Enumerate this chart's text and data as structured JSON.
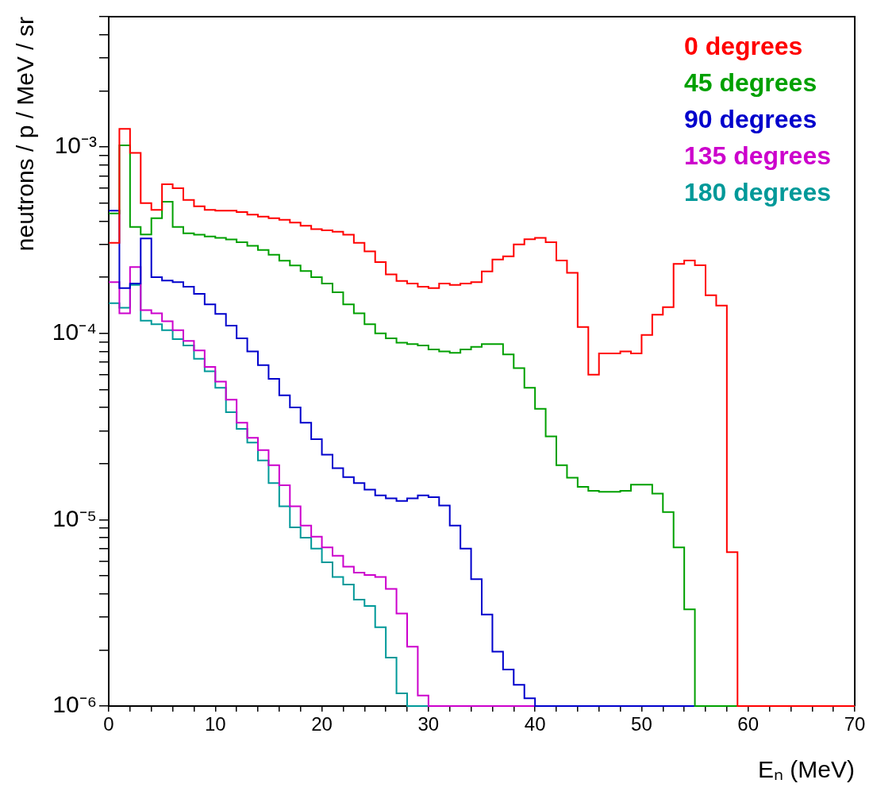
{
  "chart_data": {
    "type": "histogram",
    "xlabel": "Eₙ (MeV)",
    "ylabel": "neutrons / p / MeV / sr",
    "log": true,
    "legend": "top right",
    "xlim": [
      0,
      70
    ],
    "ylim": [
      1e-06,
      0.005
    ],
    "xticks": [
      0,
      {
        "value": 2,
        "label": null
      },
      {
        "value": 4,
        "label": null
      },
      {
        "value": 6,
        "label": null
      },
      {
        "value": 8,
        "label": null
      },
      10,
      {
        "value": 12,
        "label": null
      },
      {
        "value": 14,
        "label": null
      },
      {
        "value": 16,
        "label": null
      },
      {
        "value": 18,
        "label": null
      },
      20,
      {
        "value": 22,
        "label": null
      },
      {
        "value": 24,
        "label": null
      },
      {
        "value": 26,
        "label": null
      },
      {
        "value": 28,
        "label": null
      },
      30,
      {
        "value": 32,
        "label": null
      },
      {
        "value": 34,
        "label": null
      },
      {
        "value": 36,
        "label": null
      },
      {
        "value": 38,
        "label": null
      },
      40,
      {
        "value": 42,
        "label": null
      },
      {
        "value": 44,
        "label": null
      },
      {
        "value": 46,
        "label": null
      },
      {
        "value": 48,
        "label": null
      },
      50,
      {
        "value": 52,
        "label": null
      },
      {
        "value": 54,
        "label": null
      },
      {
        "value": 56,
        "label": null
      },
      {
        "value": 58,
        "label": null
      },
      60,
      {
        "value": 62,
        "label": null
      },
      {
        "value": 64,
        "label": null
      },
      {
        "value": 66,
        "label": null
      },
      {
        "value": 68,
        "label": null
      },
      70
    ],
    "yticks": [
      {
        "value": 1e-06,
        "label": "10⁻⁶"
      },
      {
        "value": 2e-06,
        "label": null
      },
      {
        "value": 3e-06,
        "label": null
      },
      {
        "value": 4e-06,
        "label": null
      },
      {
        "value": 5e-06,
        "label": null
      },
      {
        "value": 6e-06,
        "label": null
      },
      {
        "value": 7e-06,
        "label": null
      },
      {
        "value": 8e-06,
        "label": null
      },
      {
        "value": 9e-06,
        "label": null
      },
      {
        "value": 1e-05,
        "label": "10⁻⁵"
      },
      {
        "value": 2e-05,
        "label": null
      },
      {
        "value": 3e-05,
        "label": null
      },
      {
        "value": 4e-05,
        "label": null
      },
      {
        "value": 5e-05,
        "label": null
      },
      {
        "value": 6e-05,
        "label": null
      },
      {
        "value": 7e-05,
        "label": null
      },
      {
        "value": 8e-05,
        "label": null
      },
      {
        "value": 9e-05,
        "label": null
      },
      {
        "value": 0.0001,
        "label": "10⁻⁴"
      },
      {
        "value": 0.0002,
        "label": null
      },
      {
        "value": 0.0003,
        "label": null
      },
      {
        "value": 0.0004,
        "label": null
      },
      {
        "value": 0.0005,
        "label": null
      },
      {
        "value": 0.0006,
        "label": null
      },
      {
        "value": 0.0007,
        "label": null
      },
      {
        "value": 0.0008,
        "label": null
      },
      {
        "value": 0.0009,
        "label": null
      },
      {
        "value": 0.001,
        "label": "10⁻³"
      },
      {
        "value": 0.002,
        "label": null
      },
      {
        "value": 0.003,
        "label": null
      },
      {
        "value": 0.004,
        "label": null
      },
      {
        "value": 0.005,
        "label": null
      }
    ],
    "bins": [
      0,
      1,
      2,
      3,
      4,
      5,
      6,
      7,
      8,
      9,
      10,
      11,
      12,
      13,
      14,
      15,
      16,
      17,
      18,
      19,
      20,
      21,
      22,
      23,
      24,
      25,
      26,
      27,
      28,
      29,
      30,
      31,
      32,
      33,
      34,
      35,
      36,
      37,
      38,
      39,
      40,
      41,
      42,
      43,
      44,
      45,
      46,
      47,
      48,
      49,
      50,
      51,
      52,
      53,
      54,
      55,
      56,
      57,
      58,
      59,
      60,
      61,
      62,
      63,
      64,
      65,
      66,
      67,
      68,
      69,
      70
    ],
    "series": [
      {
        "name": "0 degrees",
        "color": "#ff0000",
        "values": [
          0.000306,
          0.00125,
          0.00093,
          0.0005,
          0.00046,
          0.00063,
          0.0006,
          0.00052,
          0.00048,
          0.00046,
          0.000455,
          0.000455,
          0.000447,
          0.000433,
          0.000423,
          0.000415,
          0.000407,
          0.000393,
          0.000378,
          0.000362,
          0.000357,
          0.000351,
          0.000338,
          0.000306,
          0.000275,
          0.000241,
          0.000207,
          0.000191,
          0.000185,
          0.000178,
          0.000175,
          0.000185,
          0.000182,
          0.000185,
          0.000188,
          0.000215,
          0.000249,
          0.000259,
          0.0003,
          0.00032,
          0.000325,
          0.000308,
          0.000246,
          0.000211,
          0.000108,
          6e-05,
          7.8e-05,
          7.8e-05,
          8e-05,
          7.8e-05,
          9.8e-05,
          0.000126,
          0.000138,
          0.000236,
          0.000246,
          0.000232,
          0.00016,
          0.000141,
          6.7e-06,
          null,
          null,
          null,
          null,
          null,
          null,
          null,
          null,
          null,
          null,
          null
        ]
      },
      {
        "name": "45 degrees",
        "color": "#00a000",
        "values": [
          0.00044,
          0.00102,
          0.000372,
          0.000339,
          0.000415,
          0.000508,
          0.000372,
          0.000344,
          0.000338,
          0.000331,
          0.000325,
          0.000319,
          0.000308,
          0.000295,
          0.00028,
          0.000264,
          0.000245,
          0.000231,
          0.000216,
          0.0002,
          0.000185,
          0.000166,
          0.000143,
          0.000128,
          0.000112,
          0.0001,
          9.4e-05,
          8.9e-05,
          8.76e-05,
          8.6e-05,
          8.2e-05,
          8e-05,
          7.85e-05,
          8.2e-05,
          8.45e-05,
          8.76e-05,
          8.76e-05,
          7.7e-05,
          6.5e-05,
          5.1e-05,
          3.93e-05,
          2.8e-05,
          1.96e-05,
          1.68e-05,
          1.5e-05,
          1.43e-05,
          1.41e-05,
          1.41e-05,
          1.43e-05,
          1.54e-05,
          1.54e-05,
          1.38e-05,
          1.1e-05,
          7.1e-06,
          3.3e-06,
          null,
          null,
          null,
          null,
          null,
          null,
          null,
          null,
          null,
          null,
          null,
          null,
          null,
          null,
          null
        ]
      },
      {
        "name": "90 degrees",
        "color": "#0000cc",
        "values": [
          0.000455,
          0.000175,
          0.000185,
          0.000323,
          0.0002,
          0.000192,
          0.000188,
          0.000178,
          0.000163,
          0.000143,
          0.000127,
          0.00011,
          9.4e-05,
          8e-05,
          6.75e-05,
          5.7e-05,
          4.65e-05,
          4e-05,
          3.31e-05,
          2.7e-05,
          2.23e-05,
          1.89e-05,
          1.69e-05,
          1.57e-05,
          1.45e-05,
          1.35e-05,
          1.3e-05,
          1.26e-05,
          1.3e-05,
          1.35e-05,
          1.32e-05,
          1.19e-05,
          9.3e-06,
          7e-06,
          4.8e-06,
          3.1e-06,
          1.96e-06,
          1.57e-06,
          1.3e-06,
          1.1e-06,
          null,
          null,
          null,
          null,
          null,
          null,
          null,
          null,
          null,
          null,
          null,
          null,
          null,
          null,
          null,
          null,
          null,
          null,
          null,
          null,
          null,
          null,
          null,
          null,
          null,
          null,
          null,
          null,
          null,
          null
        ]
      },
      {
        "name": "135 degrees",
        "color": "#cc00cc",
        "values": [
          0.000188,
          0.000128,
          0.000227,
          0.000133,
          0.000128,
          0.000116,
          0.000104,
          9.1e-05,
          8.1e-05,
          6.6e-05,
          5.5e-05,
          4.4e-05,
          3.31e-05,
          2.75e-05,
          2.36e-05,
          1.96e-05,
          1.53e-05,
          1.18e-05,
          9.3e-06,
          8.1e-06,
          7.1e-06,
          6.4e-06,
          5.6e-06,
          5.2e-06,
          5.05e-06,
          4.93e-06,
          4.25e-06,
          3.14e-06,
          2.08e-06,
          1.14e-06,
          null,
          null,
          null,
          null,
          null,
          null,
          null,
          null,
          null,
          null,
          null,
          null,
          null,
          null,
          null,
          null,
          null,
          null,
          null,
          null,
          null,
          null,
          null,
          null,
          null,
          null,
          null,
          null,
          null,
          null,
          null,
          null,
          null,
          null,
          null,
          null,
          null,
          null,
          null,
          null
        ]
      },
      {
        "name": "180 degrees",
        "color": "#009999",
        "values": [
          0.000145,
          0.000137,
          0.000182,
          0.000117,
          0.000112,
          0.000104,
          9.3e-05,
          8.6e-05,
          7.3e-05,
          6.26e-05,
          5.1e-05,
          3.77e-05,
          3.07e-05,
          2.59e-05,
          2.08e-05,
          1.57e-05,
          1.18e-05,
          9.1e-06,
          8e-06,
          7e-06,
          5.9e-06,
          4.92e-06,
          4.49e-06,
          3.72e-06,
          3.44e-06,
          2.65e-06,
          1.82e-06,
          1.17e-06,
          null,
          null,
          null,
          null,
          null,
          null,
          null,
          null,
          null,
          null,
          null,
          null,
          null,
          null,
          null,
          null,
          null,
          null,
          null,
          null,
          null,
          null,
          null,
          null,
          null,
          null,
          null,
          null,
          null,
          null,
          null,
          null,
          null,
          null,
          null,
          null,
          null,
          null,
          null,
          null,
          null,
          null
        ]
      }
    ]
  }
}
